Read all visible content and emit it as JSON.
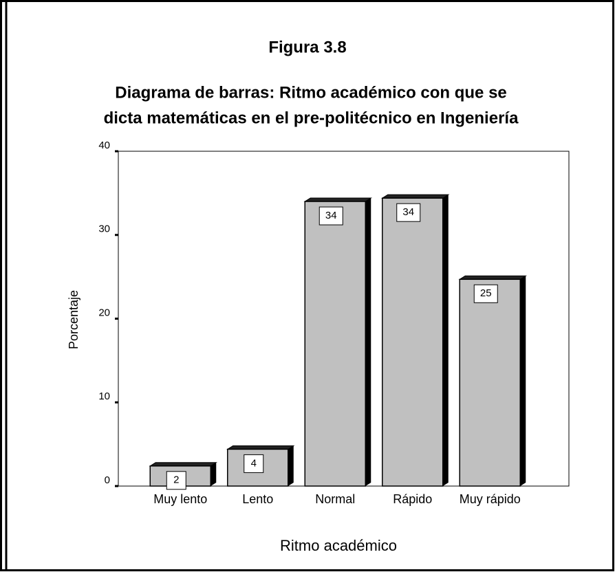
{
  "chart_data": {
    "type": "bar3d",
    "title": "Figura 3.8",
    "subtitle": [
      "Diagrama de barras: Ritmo académico con que se",
      "dicta matemáticas en el pre-politécnico en Ingeniería"
    ],
    "x_label": "Ritmo académico",
    "y_label": "Porcentaje",
    "categories": [
      "Muy lento",
      "Lento",
      "Normal",
      "Rápido",
      "Muy rápido"
    ],
    "values": [
      2.4,
      4.4,
      34.0,
      34.4,
      24.7
    ],
    "value_labels": [
      "2",
      "4",
      "34",
      "34",
      "25"
    ],
    "color": "#c0c0c0",
    "ylim": [
      0,
      40
    ],
    "yticks": [
      0,
      10,
      20,
      30,
      40
    ]
  }
}
